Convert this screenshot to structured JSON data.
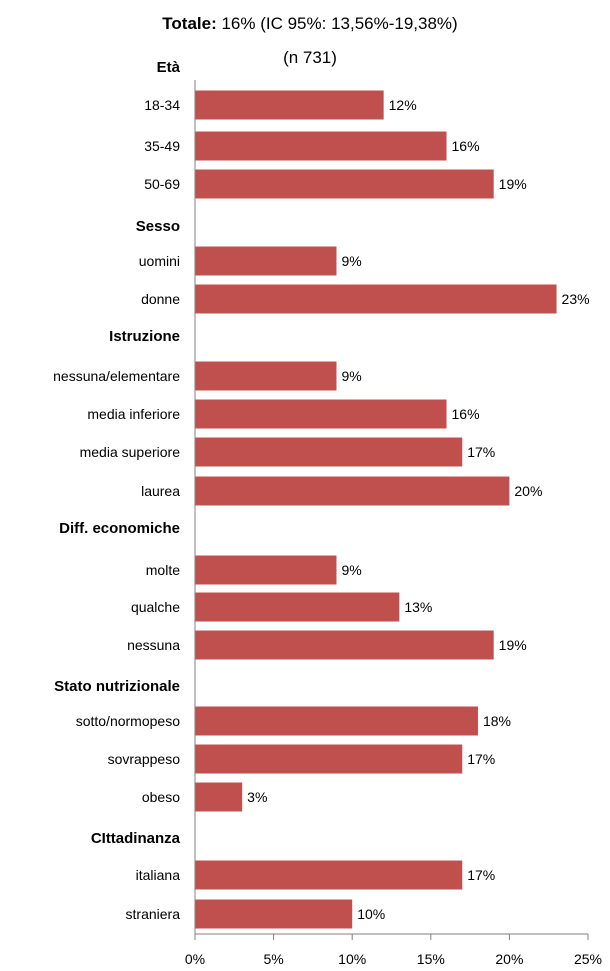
{
  "chart_data": {
    "type": "bar",
    "orientation": "horizontal",
    "title_bold": "Totale:",
    "title_rest": " 16% (IC 95%: 13,56%-19,38%)",
    "subtitle": "(n 731)",
    "xlim": [
      0,
      25
    ],
    "xticks": [
      0,
      5,
      10,
      15,
      20,
      25
    ],
    "xtick_labels": [
      "0%",
      "5%",
      "10%",
      "15%",
      "20%",
      "25%"
    ],
    "bar_color": "#c0504d",
    "groups": [
      {
        "name": "Età",
        "bars": [
          {
            "label": "18-34",
            "value": 12,
            "text": "12%"
          },
          {
            "label": "35-49",
            "value": 16,
            "text": "16%"
          },
          {
            "label": "50-69",
            "value": 19,
            "text": "19%"
          }
        ]
      },
      {
        "name": "Sesso",
        "bars": [
          {
            "label": "uomini",
            "value": 9,
            "text": "9%"
          },
          {
            "label": "donne",
            "value": 23,
            "text": "23%"
          }
        ]
      },
      {
        "name": "Istruzione",
        "bars": [
          {
            "label": "nessuna/elementare",
            "value": 9,
            "text": "9%"
          },
          {
            "label": "media inferiore",
            "value": 16,
            "text": "16%"
          },
          {
            "label": "media superiore",
            "value": 17,
            "text": "17%"
          },
          {
            "label": "laurea",
            "value": 20,
            "text": "20%"
          }
        ]
      },
      {
        "name": "Diff. economiche",
        "bars": [
          {
            "label": "molte",
            "value": 9,
            "text": "9%"
          },
          {
            "label": "qualche",
            "value": 13,
            "text": "13%"
          },
          {
            "label": "nessuna",
            "value": 19,
            "text": "19%"
          }
        ]
      },
      {
        "name": "Stato nutrizionale",
        "bars": [
          {
            "label": "sotto/normopeso",
            "value": 18,
            "text": "18%"
          },
          {
            "label": "sovrappeso",
            "value": 17,
            "text": "17%"
          },
          {
            "label": "obeso",
            "value": 3,
            "text": "3%"
          }
        ]
      },
      {
        "name": "CIttadinanza",
        "bars": [
          {
            "label": "italiana",
            "value": 17,
            "text": "17%"
          },
          {
            "label": "straniera",
            "value": 10,
            "text": "10%"
          }
        ]
      }
    ]
  }
}
